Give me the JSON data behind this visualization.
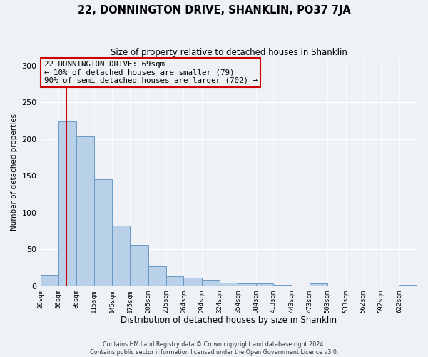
{
  "title": "22, DONNINGTON DRIVE, SHANKLIN, PO37 7JA",
  "subtitle": "Size of property relative to detached houses in Shanklin",
  "xlabel": "Distribution of detached houses by size in Shanklin",
  "ylabel": "Number of detached properties",
  "bar_labels": [
    "26sqm",
    "56sqm",
    "86sqm",
    "115sqm",
    "145sqm",
    "175sqm",
    "205sqm",
    "235sqm",
    "264sqm",
    "294sqm",
    "324sqm",
    "354sqm",
    "384sqm",
    "413sqm",
    "443sqm",
    "473sqm",
    "503sqm",
    "533sqm",
    "562sqm",
    "592sqm",
    "622sqm"
  ],
  "bar_values": [
    15,
    224,
    204,
    145,
    82,
    56,
    27,
    13,
    11,
    8,
    5,
    4,
    4,
    2,
    0,
    4,
    1,
    0,
    0,
    0,
    2
  ],
  "bar_color": "#b8d0e8",
  "bar_edge_color": "#6899c4",
  "property_line_x": 69,
  "bin_edges": [
    26,
    56,
    86,
    115,
    145,
    175,
    205,
    235,
    264,
    294,
    324,
    354,
    384,
    413,
    443,
    473,
    503,
    533,
    562,
    592,
    622,
    652
  ],
  "red_line_color": "#cc0000",
  "annotation_lines": [
    "22 DONNINGTON DRIVE: 69sqm",
    "← 10% of detached houses are smaller (79)",
    "90% of semi-detached houses are larger (702) →"
  ],
  "annotation_box_color": "#cc0000",
  "ylim": [
    0,
    310
  ],
  "yticks": [
    0,
    50,
    100,
    150,
    200,
    250,
    300
  ],
  "footer_lines": [
    "Contains HM Land Registry data © Crown copyright and database right 2024.",
    "Contains public sector information licensed under the Open Government Licence v3.0."
  ],
  "background_color": "#eef2f7",
  "grid_color": "#d8e4f0"
}
